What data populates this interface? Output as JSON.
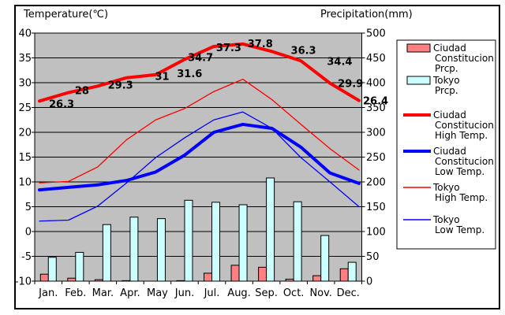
{
  "titles": {
    "left_axis_title": "Temperature(℃)",
    "right_axis_title": "Precipitation(mm)"
  },
  "chart_data": {
    "type": "bar+line combo climate chart",
    "categories": [
      "Jan.",
      "Feb.",
      "Mar.",
      "Apr.",
      "May",
      "Jun.",
      "Jul.",
      "Aug.",
      "Sep.",
      "Oct.",
      "Nov.",
      "Dec."
    ],
    "temp_axis": {
      "label": "Temperature(℃)",
      "min": -10,
      "max": 40,
      "step": 5,
      "ticks": [
        "40",
        "35",
        "30",
        "25",
        "20",
        "15",
        "10",
        "5",
        "0",
        "-5",
        "-10"
      ]
    },
    "precip_axis": {
      "label": "Precipitation(mm)",
      "min": 0,
      "max": 500,
      "step": 50,
      "ticks": [
        "500",
        "450",
        "400",
        "350",
        "300",
        "250",
        "200",
        "150",
        "100",
        "50",
        "0"
      ]
    },
    "grid": "horizontal only",
    "plot_bg": "#c0c0c0",
    "series": [
      {
        "name": "Ciudad Constitucion Prcp.",
        "type": "bar",
        "color": "#ff8080",
        "values": [
          14,
          6,
          3,
          1,
          0,
          1,
          16,
          32,
          28,
          4,
          11,
          25
        ]
      },
      {
        "name": "Tokyo Prcp.",
        "type": "bar",
        "color": "#ccffff",
        "values": [
          48,
          58,
          114,
          129,
          126,
          163,
          159,
          154,
          208,
          160,
          92,
          38
        ]
      },
      {
        "name": "Ciudad Constitucion High Temp.",
        "type": "line-thick",
        "color": "#ff0000",
        "values": [
          26.3,
          28,
          29.3,
          31,
          31.6,
          34.7,
          37.3,
          37.8,
          36.3,
          34.4,
          29.9,
          26.4
        ],
        "point_labels": [
          "26.3",
          "28",
          "29.3",
          "31",
          "31.6",
          "34.7",
          "37.3",
          "37.8",
          "36.3",
          "34.4",
          "29.9",
          "26.4"
        ]
      },
      {
        "name": "Ciudad Constitucion Low Temp.",
        "type": "line-thick",
        "color": "#0000ff",
        "values": [
          8.4,
          8.9,
          9.4,
          10.3,
          12.0,
          15.4,
          20.0,
          21.6,
          20.8,
          17.0,
          11.8,
          9.7
        ]
      },
      {
        "name": "Tokyo High Temp.",
        "type": "line-thin",
        "color": "#ff0000",
        "values": [
          9.8,
          10.1,
          13.0,
          18.5,
          22.5,
          24.8,
          28.2,
          30.7,
          26.6,
          21.6,
          16.7,
          12.4
        ]
      },
      {
        "name": "Tokyo Low Temp.",
        "type": "line-thin",
        "color": "#0000ff",
        "values": [
          2.1,
          2.3,
          5.1,
          9.8,
          14.9,
          18.9,
          22.5,
          24.1,
          20.8,
          14.9,
          10.0,
          5.0
        ]
      }
    ],
    "legend": {
      "position": "right",
      "items": [
        {
          "swatch": "bar",
          "color": "#ff8080",
          "lines": [
            "Ciudad",
            "Constitucion",
            "Prcp."
          ]
        },
        {
          "swatch": "bar",
          "color": "#ccffff",
          "lines": [
            "Tokyo",
            "Prcp."
          ]
        },
        {
          "swatch": "line-thick",
          "color": "#ff0000",
          "lines": [
            "Ciudad",
            "Constitucion",
            "High Temp."
          ]
        },
        {
          "swatch": "line-thick",
          "color": "#0000ff",
          "lines": [
            "Ciudad",
            "Constitucion",
            "Low Temp."
          ]
        },
        {
          "swatch": "line-thin",
          "color": "#ff0000",
          "lines": [
            "Tokyo",
            "High Temp."
          ]
        },
        {
          "swatch": "line-thin",
          "color": "#0000ff",
          "lines": [
            "Tokyo",
            "Low Temp."
          ]
        }
      ]
    },
    "colors": {
      "frame": "#000000",
      "gridline": "#000000",
      "text": "#000000",
      "background": "#ffffff"
    }
  }
}
